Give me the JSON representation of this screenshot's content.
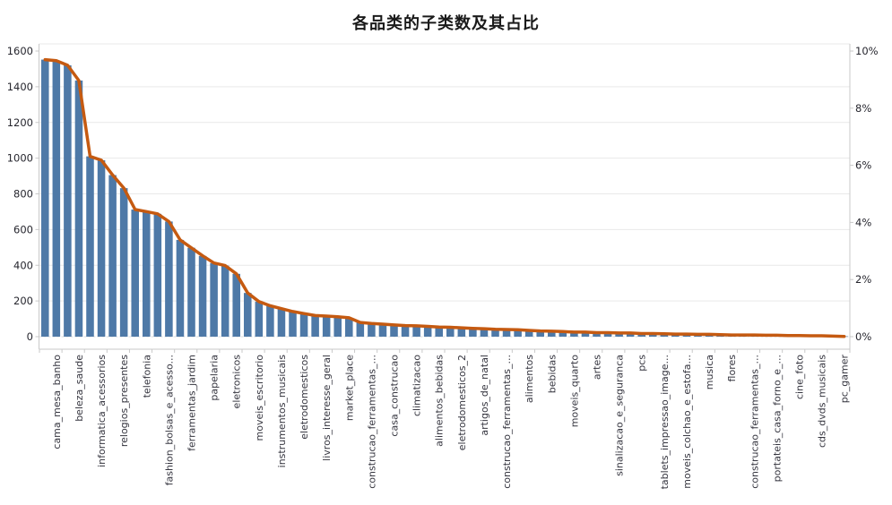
{
  "title": "各品类的子类数及其占比",
  "colors": {
    "bar": "#4e79a7",
    "line": "#c55a11",
    "grid": "#e9e9e9",
    "axis": "#c9c9c9",
    "zero_line": "#d9d9d9",
    "tick_label": "#26262e",
    "category_label": "#35353f",
    "title": "#1a1a1a",
    "background": "#ffffff"
  },
  "chart_data": {
    "type": "bar",
    "subtype": "pareto-bar-with-line",
    "title": "各品类的子类数及其占比",
    "grid": true,
    "legend_position": "none",
    "left_axis": {
      "range": [
        0,
        1600
      ],
      "ticks": [
        0,
        200,
        400,
        600,
        800,
        1000,
        1200,
        1400,
        1600
      ]
    },
    "right_axis": {
      "range_pct": [
        0,
        10
      ],
      "tick_labels": [
        "0%",
        "2%",
        "4%",
        "6%",
        "8%",
        "10%"
      ]
    },
    "x_label_every": 2,
    "x_labels": [
      "cama_mesa_banho",
      "beleza_saude",
      "informatica_acessorios",
      "relogios_presentes",
      "telefonia",
      "fashion_bolsas_e_acesso...",
      "ferramentas_jardim",
      "papelaria",
      "eletronicos",
      "moveis_escritorio",
      "instrumentos_musicais",
      "eletrodomesticos",
      "livros_interesse_geral",
      "market_place",
      "construcao_ferramentas_...",
      "casa_construcao",
      "climatizacao",
      "alimentos_bebidas",
      "eletrodomesticos_2",
      "artigos_de_natal",
      "construcao_ferramentas_...",
      "alimentos",
      "bebidas",
      "moveis_quarto",
      "artes",
      "sinalizacao_e_seguranca",
      "pcs",
      "tablets_impressao_image...",
      "moveis_colchao_e_estofa...",
      "musica",
      "flores",
      "construcao_ferramentas_...",
      "portateis_casa_forno_e_...",
      "cine_foto",
      "cds_dvds_musicais",
      "pc_gamer"
    ],
    "series": [
      {
        "name": "子类数",
        "type": "bar",
        "values": [
          1552,
          1545,
          1520,
          1435,
          1010,
          988,
          905,
          832,
          712,
          700,
          688,
          645,
          542,
          498,
          452,
          412,
          398,
          352,
          245,
          196,
          172,
          156,
          140,
          130,
          118,
          115,
          112,
          105,
          80,
          74,
          70,
          66,
          62,
          60,
          58,
          55,
          52,
          50,
          46,
          44,
          42,
          40,
          38,
          35,
          32,
          30,
          28,
          26,
          25,
          23,
          22,
          21,
          20,
          18,
          17,
          16,
          15,
          14,
          13,
          12,
          11,
          10,
          9,
          9,
          8,
          8,
          7,
          6,
          5,
          4,
          3,
          2
        ]
      },
      {
        "name": "占比",
        "type": "line",
        "values_pct": [
          9.7,
          9.66,
          9.5,
          8.97,
          6.31,
          6.18,
          5.66,
          5.2,
          4.45,
          4.38,
          4.3,
          4.03,
          3.39,
          3.11,
          2.83,
          2.58,
          2.49,
          2.2,
          1.53,
          1.23,
          1.08,
          0.98,
          0.88,
          0.81,
          0.74,
          0.72,
          0.7,
          0.66,
          0.5,
          0.46,
          0.44,
          0.41,
          0.39,
          0.38,
          0.36,
          0.34,
          0.33,
          0.31,
          0.29,
          0.28,
          0.26,
          0.25,
          0.24,
          0.22,
          0.2,
          0.19,
          0.18,
          0.16,
          0.16,
          0.14,
          0.14,
          0.13,
          0.13,
          0.11,
          0.11,
          0.1,
          0.09,
          0.09,
          0.08,
          0.08,
          0.07,
          0.06,
          0.06,
          0.06,
          0.05,
          0.05,
          0.04,
          0.04,
          0.03,
          0.03,
          0.02,
          0.01
        ]
      }
    ]
  }
}
